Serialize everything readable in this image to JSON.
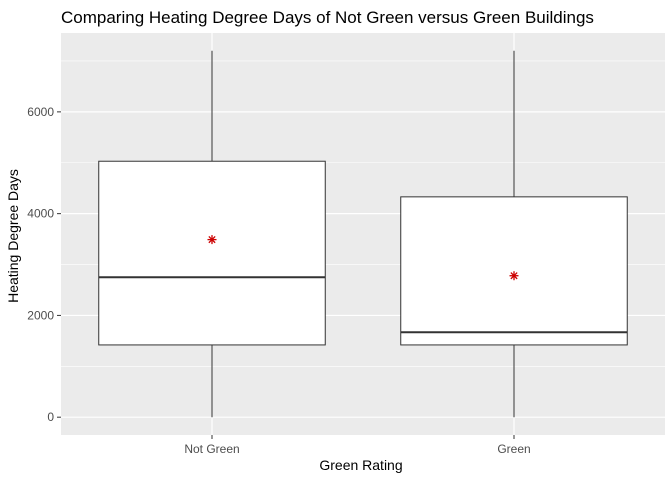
{
  "chart_data": {
    "type": "boxplot",
    "title": "Comparing Heating Degree Days of Not Green versus Green Buildings",
    "xlabel": "Green Rating",
    "ylabel": "Heating Degree Days",
    "categories": [
      "Not Green",
      "Green"
    ],
    "ylim": [
      -350,
      7550
    ],
    "y_ticks": [
      0,
      2000,
      4000,
      6000
    ],
    "grid": true,
    "boxes": [
      {
        "category": "Not Green",
        "min": 0,
        "q1": 1420,
        "median": 2750,
        "q3": 5030,
        "max": 7200,
        "mean": 3490
      },
      {
        "category": "Green",
        "min": 0,
        "q1": 1420,
        "median": 1670,
        "q3": 4330,
        "max": 7200,
        "mean": 2780
      }
    ],
    "colors": {
      "panel_background": "#ebebeb",
      "gridline": "#ffffff",
      "box_fill": "#ffffff",
      "box_stroke": "#333333",
      "mean_marker": "#cc0000"
    }
  }
}
